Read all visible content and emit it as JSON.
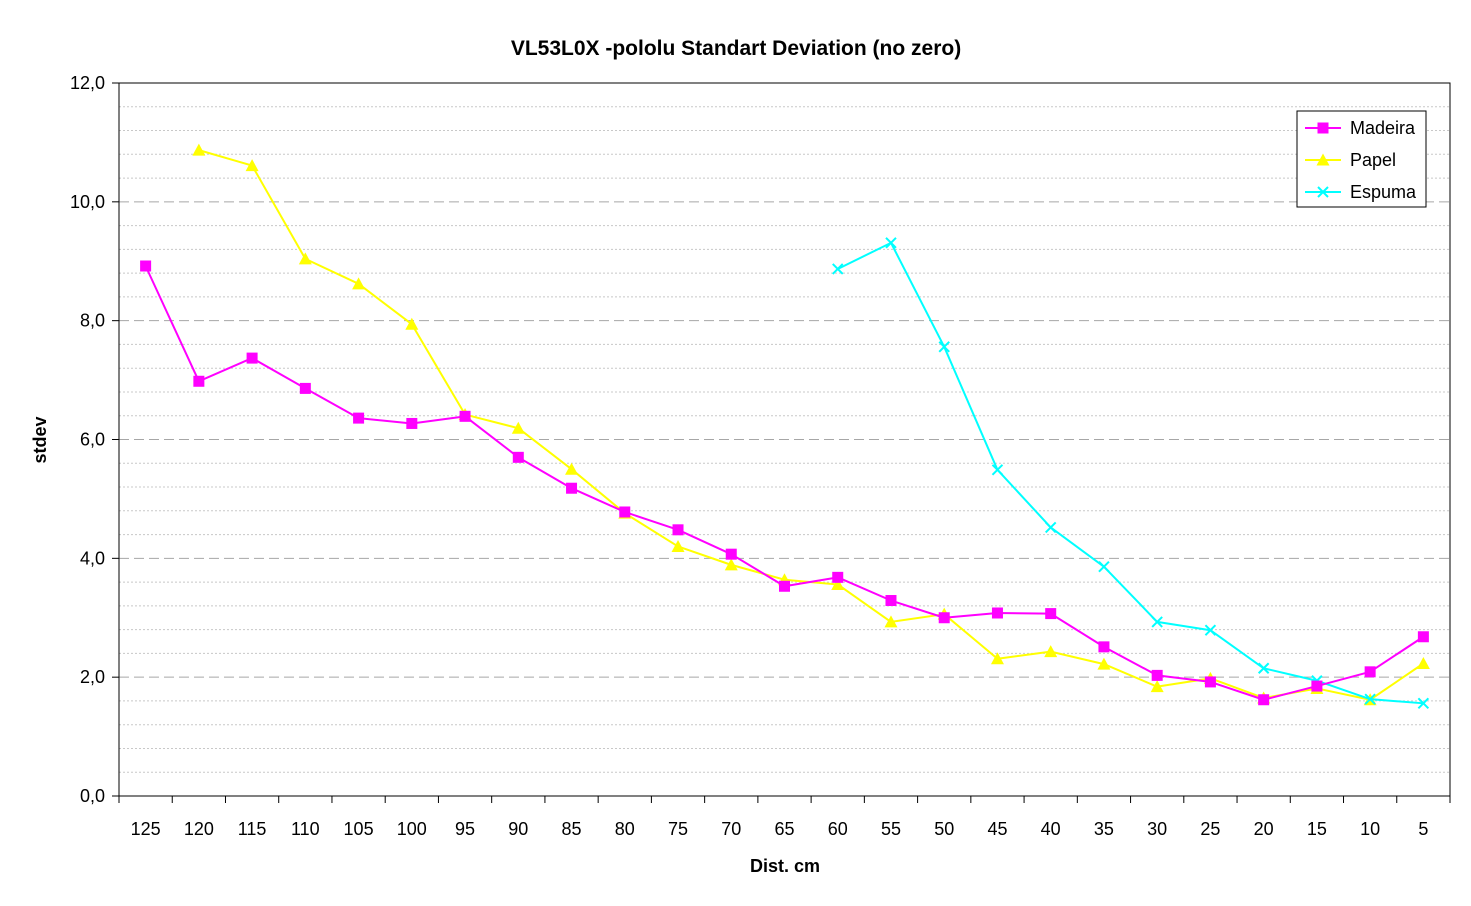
{
  "chart_data": {
    "type": "line",
    "title": "VL53L0X -pololu Standart Deviation (no zero)",
    "xlabel": "Dist. cm",
    "ylabel": "stdev",
    "categories": [
      "125",
      "120",
      "115",
      "110",
      "105",
      "100",
      "95",
      "90",
      "85",
      "80",
      "75",
      "70",
      "65",
      "60",
      "55",
      "50",
      "45",
      "40",
      "35",
      "30",
      "25",
      "20",
      "15",
      "10",
      "5"
    ],
    "ylim": [
      0,
      12
    ],
    "yticks": [
      "0,0",
      "2,0",
      "4,0",
      "6,0",
      "8,0",
      "10,0",
      "12,0"
    ],
    "grid": "horizontal dashed",
    "legend_position": "top-right",
    "series": [
      {
        "name": "Madeira",
        "color": "#ff00ff",
        "marker": "square",
        "values": [
          8.92,
          6.98,
          7.37,
          6.86,
          6.36,
          6.27,
          6.39,
          5.7,
          5.18,
          4.78,
          4.48,
          4.07,
          3.53,
          3.68,
          3.29,
          3.0,
          3.08,
          3.07,
          2.51,
          2.03,
          1.92,
          1.62,
          1.85,
          2.09,
          2.68
        ]
      },
      {
        "name": "Papel",
        "color": "#ffff00",
        "marker": "triangle",
        "values": [
          null,
          10.87,
          10.61,
          9.04,
          8.62,
          7.94,
          6.42,
          6.19,
          5.5,
          4.76,
          4.2,
          3.89,
          3.64,
          3.56,
          2.93,
          3.06,
          2.31,
          2.43,
          2.22,
          1.84,
          1.98,
          1.65,
          1.81,
          1.62,
          2.23
        ]
      },
      {
        "name": "Espuma",
        "color": "#00ffff",
        "marker": "x",
        "values": [
          null,
          null,
          null,
          null,
          null,
          null,
          null,
          null,
          null,
          null,
          null,
          null,
          null,
          8.87,
          9.31,
          7.56,
          5.49,
          4.52,
          3.86,
          2.93,
          2.79,
          2.15,
          1.94,
          1.63,
          1.56
        ]
      }
    ]
  }
}
